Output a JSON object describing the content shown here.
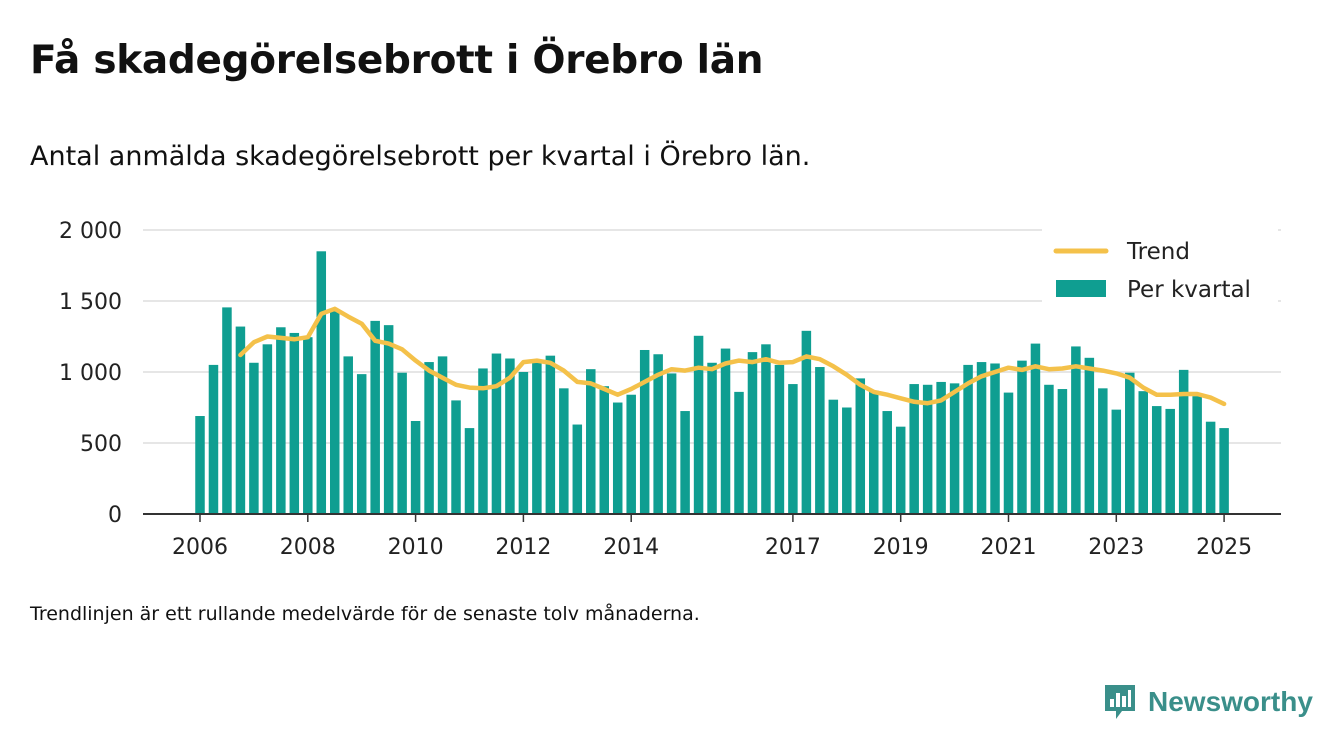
{
  "title": "Få skadegörelsebrott i Örebro län",
  "subtitle": "Antal anmälda skadegörelsebrott per kvartal i Örebro län.",
  "note": "Trendlinjen är ett rullande medelvärde för de senaste tolv månaderna.",
  "brand": {
    "name": "Newsworthy",
    "icon": "newsworthy-logo-icon"
  },
  "colors": {
    "bar": "#0f9e91",
    "trend": "#f4c14a",
    "grid": "#dddddd",
    "axis": "#333333",
    "brand": "#3a8f8a"
  },
  "chart_data": {
    "type": "bar",
    "title": "",
    "xlabel": "",
    "ylabel": "",
    "ylim": [
      0,
      2000
    ],
    "y_ticks": [
      0,
      500,
      1000,
      1500,
      2000
    ],
    "y_tick_labels": [
      "0",
      "500",
      "1 000",
      "1 500",
      "2 000"
    ],
    "x_ticks": [
      {
        "year": 2006,
        "label": "2006"
      },
      {
        "year": 2008,
        "label": "2008"
      },
      {
        "year": 2010,
        "label": "2010"
      },
      {
        "year": 2012,
        "label": "2012"
      },
      {
        "year": 2014,
        "label": "2014"
      },
      {
        "year": 2017,
        "label": "2017"
      },
      {
        "year": 2019,
        "label": "2019"
      },
      {
        "year": 2021,
        "label": "2021"
      },
      {
        "year": 2023,
        "label": "2023"
      },
      {
        "year": 2025,
        "label": "2025"
      }
    ],
    "first_quarter": "2006 Q1",
    "legend": {
      "position": "top-right",
      "entries": [
        "Trend",
        "Per kvartal"
      ]
    },
    "grid": true,
    "series": [
      {
        "name": "Per kvartal",
        "kind": "bar",
        "values": [
          690,
          1050,
          1455,
          1320,
          1065,
          1195,
          1315,
          1275,
          1245,
          1850,
          1430,
          1110,
          985,
          1360,
          1330,
          995,
          655,
          1070,
          1110,
          800,
          605,
          1025,
          1130,
          1095,
          1000,
          1065,
          1115,
          885,
          630,
          1020,
          900,
          785,
          840,
          1155,
          1125,
          990,
          725,
          1255,
          1065,
          1165,
          860,
          1140,
          1195,
          1050,
          915,
          1290,
          1035,
          805,
          750,
          955,
          870,
          725,
          615,
          915,
          910,
          930,
          920,
          1050,
          1070,
          1060,
          855,
          1080,
          1200,
          910,
          880,
          1180,
          1100,
          885,
          735,
          995,
          865,
          760,
          740,
          1015,
          830,
          650,
          605
        ]
      },
      {
        "name": "Trend",
        "kind": "line",
        "values": [
          null,
          null,
          null,
          1120,
          1210,
          1250,
          1240,
          1230,
          1245,
          1410,
          1445,
          1390,
          1340,
          1220,
          1200,
          1160,
          1080,
          1010,
          960,
          910,
          890,
          885,
          900,
          960,
          1070,
          1080,
          1065,
          1010,
          930,
          920,
          880,
          840,
          880,
          930,
          980,
          1020,
          1010,
          1030,
          1020,
          1060,
          1080,
          1070,
          1090,
          1065,
          1070,
          1110,
          1090,
          1040,
          980,
          910,
          860,
          840,
          815,
          790,
          780,
          800,
          860,
          920,
          970,
          1000,
          1030,
          1015,
          1040,
          1020,
          1025,
          1040,
          1025,
          1010,
          990,
          960,
          890,
          840,
          840,
          845,
          845,
          820,
          775
        ]
      }
    ]
  }
}
